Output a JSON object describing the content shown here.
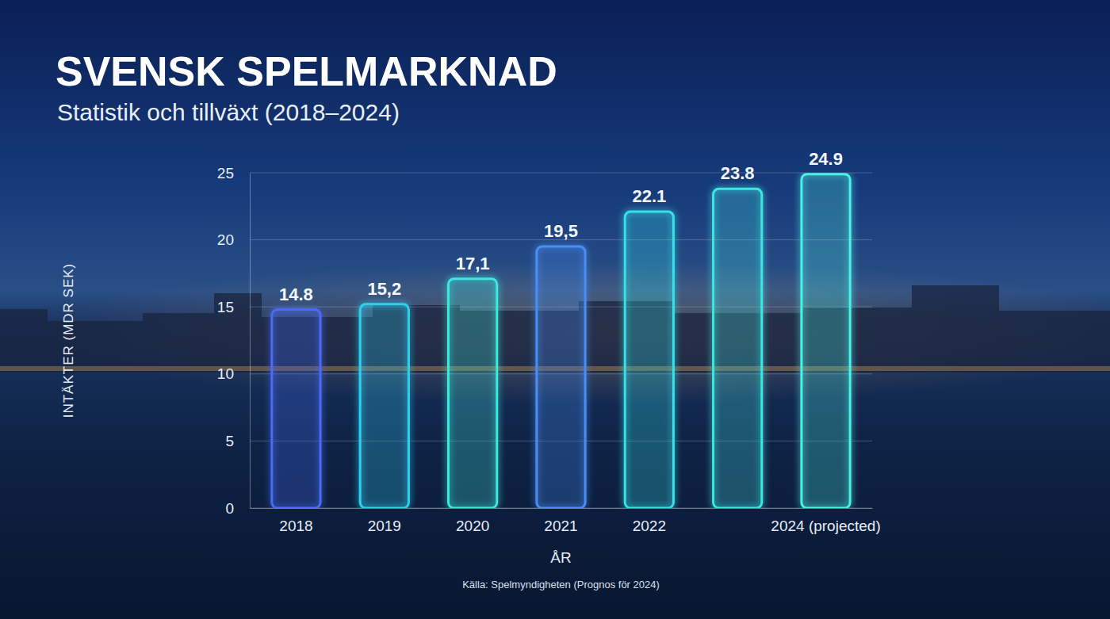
{
  "chart_data": {
    "type": "bar",
    "title": "SVENSK SPELMARKNAD",
    "subtitle": "Statistik och tillväxt (2018–2024)",
    "x_label": "ÅR",
    "y_label": "INTÄKTER (MDR SEK)",
    "source": "Källa: Spelmyndigheten (Prognos för 2024)",
    "categories": [
      "2018",
      "2019",
      "2020",
      "2021",
      "2022",
      null,
      "2024 (projected)"
    ],
    "values": [
      14.8,
      15.2,
      17.1,
      19.5,
      22.1,
      23.8,
      24.9
    ],
    "value_labels": [
      "14.8",
      "15,2",
      "17,1",
      "19,5",
      "22.1",
      "23.8",
      "24.9"
    ],
    "colors": [
      "#4a6cf7",
      "#2fd0ef",
      "#3ee8dc",
      "#4a8ef5",
      "#35e0e8",
      "#3de6e0",
      "#4cf0e6"
    ],
    "ylim": [
      0,
      25
    ],
    "yticks": [
      0,
      5,
      10,
      15,
      20,
      25
    ],
    "grid": true,
    "data_labels": true
  }
}
